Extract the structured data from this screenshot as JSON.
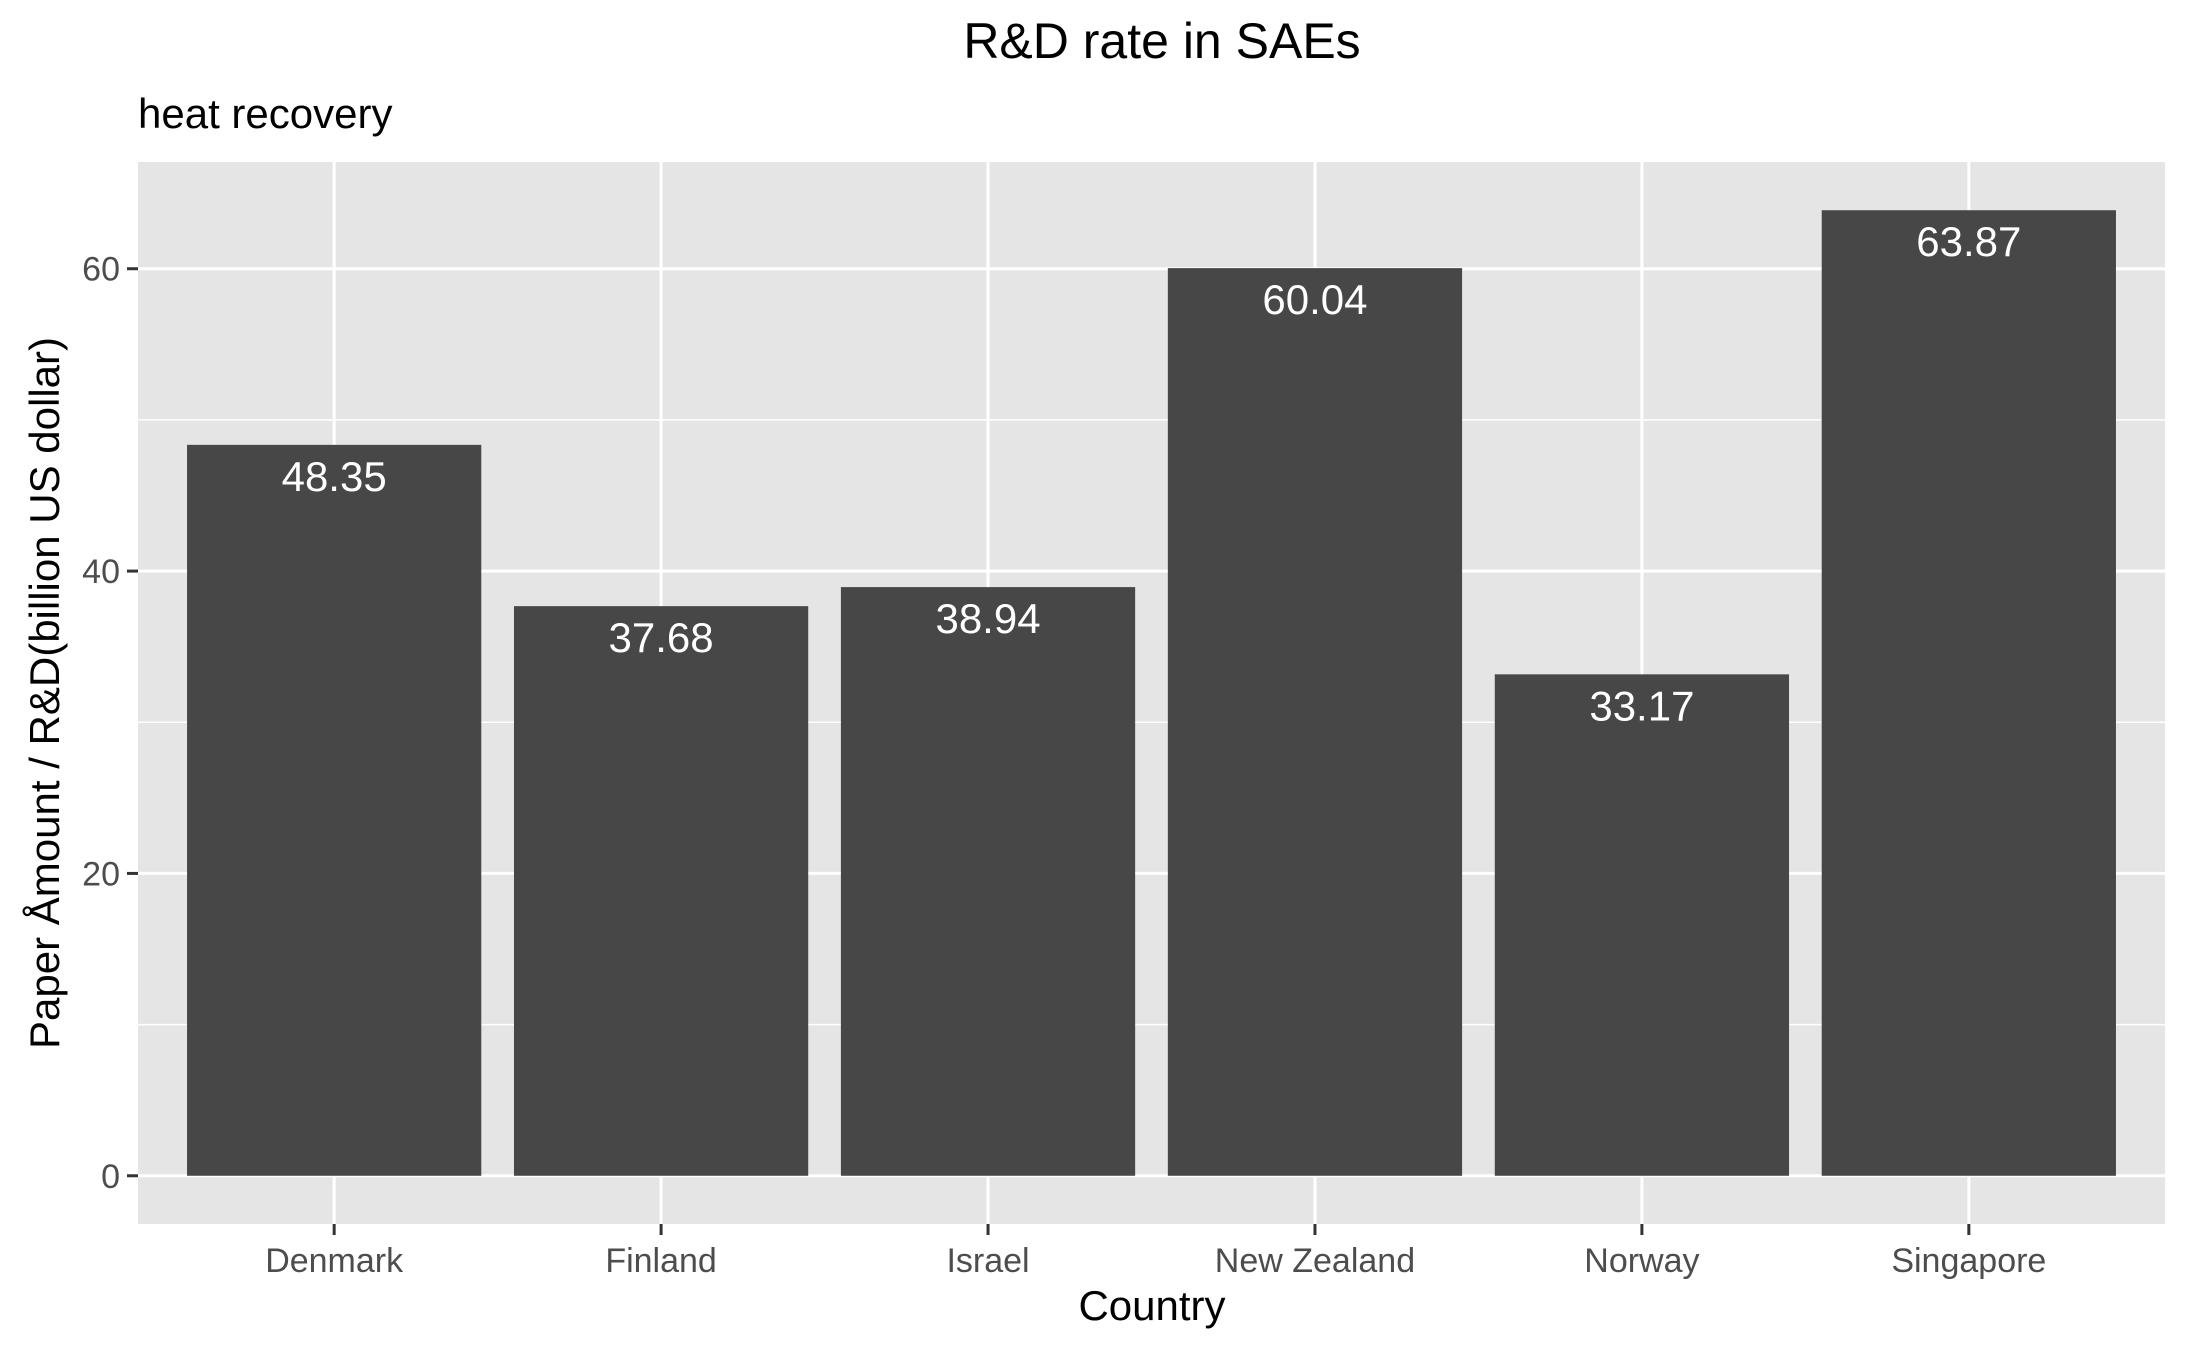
{
  "chart_data": {
    "type": "bar",
    "title": "R&D rate in SAEs",
    "subtitle": "heat recovery",
    "xlabel": "Country",
    "ylabel": "Paper Åmount / R&D(billion US dollar)",
    "categories": [
      "Denmark",
      "Finland",
      "Israel",
      "New Zealand",
      "Norway",
      "Singapore"
    ],
    "values": [
      48.35,
      37.68,
      38.94,
      60.04,
      33.17,
      63.87
    ],
    "data_labels": [
      "48.35",
      "37.68",
      "38.94",
      "60.04",
      "33.17",
      "63.87"
    ],
    "ylim": [
      -3.19,
      67.06
    ],
    "yticks": [
      0,
      20,
      40,
      60
    ],
    "ytick_labels": [
      "0",
      "20",
      "40",
      "60"
    ],
    "grid": true,
    "legend": "none",
    "colors": {
      "bar": "#474747",
      "panel_background": "#e5e5e5",
      "grid": "#ffffff",
      "data_label": "#ffffff",
      "tick_label": "#4d4d4d",
      "tick_mark": "#333333"
    }
  }
}
